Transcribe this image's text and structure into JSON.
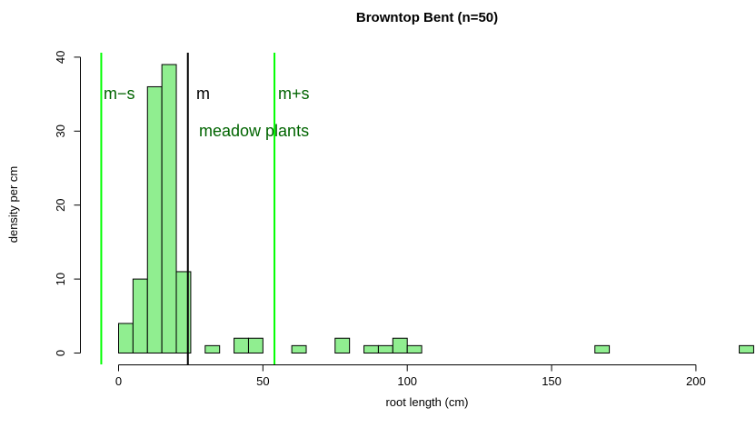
{
  "chart_data": {
    "type": "bar",
    "title": "Browntop Bent (n=50)",
    "xlabel": "root length (cm)",
    "ylabel": "density per cm",
    "xlim": [
      -5,
      219
    ],
    "ylim": [
      0,
      40
    ],
    "x_ticks": [
      0,
      50,
      100,
      150,
      200
    ],
    "y_ticks": [
      0,
      10,
      20,
      30,
      40
    ],
    "bin_width": 5,
    "bin_starts": [
      0,
      5,
      10,
      15,
      20,
      30,
      40,
      45,
      60,
      75,
      85,
      90,
      95,
      100,
      165,
      215
    ],
    "values": [
      4,
      10,
      36,
      39,
      11,
      1,
      2,
      2,
      1,
      2,
      1,
      1,
      2,
      1,
      1,
      1
    ],
    "bar_color": "#90ee90",
    "grid": false,
    "legend": "none",
    "vlines": [
      {
        "label": "m−s",
        "x": -6,
        "color": "#00ff00",
        "text_color": "#006400"
      },
      {
        "label": "m",
        "x": 24,
        "color": "#000000",
        "text_color": "#000000"
      },
      {
        "label": "m+s",
        "x": 54,
        "color": "#00ff00",
        "text_color": "#006400"
      }
    ],
    "annotation": {
      "text": "meadow plants",
      "color": "#006400"
    }
  }
}
